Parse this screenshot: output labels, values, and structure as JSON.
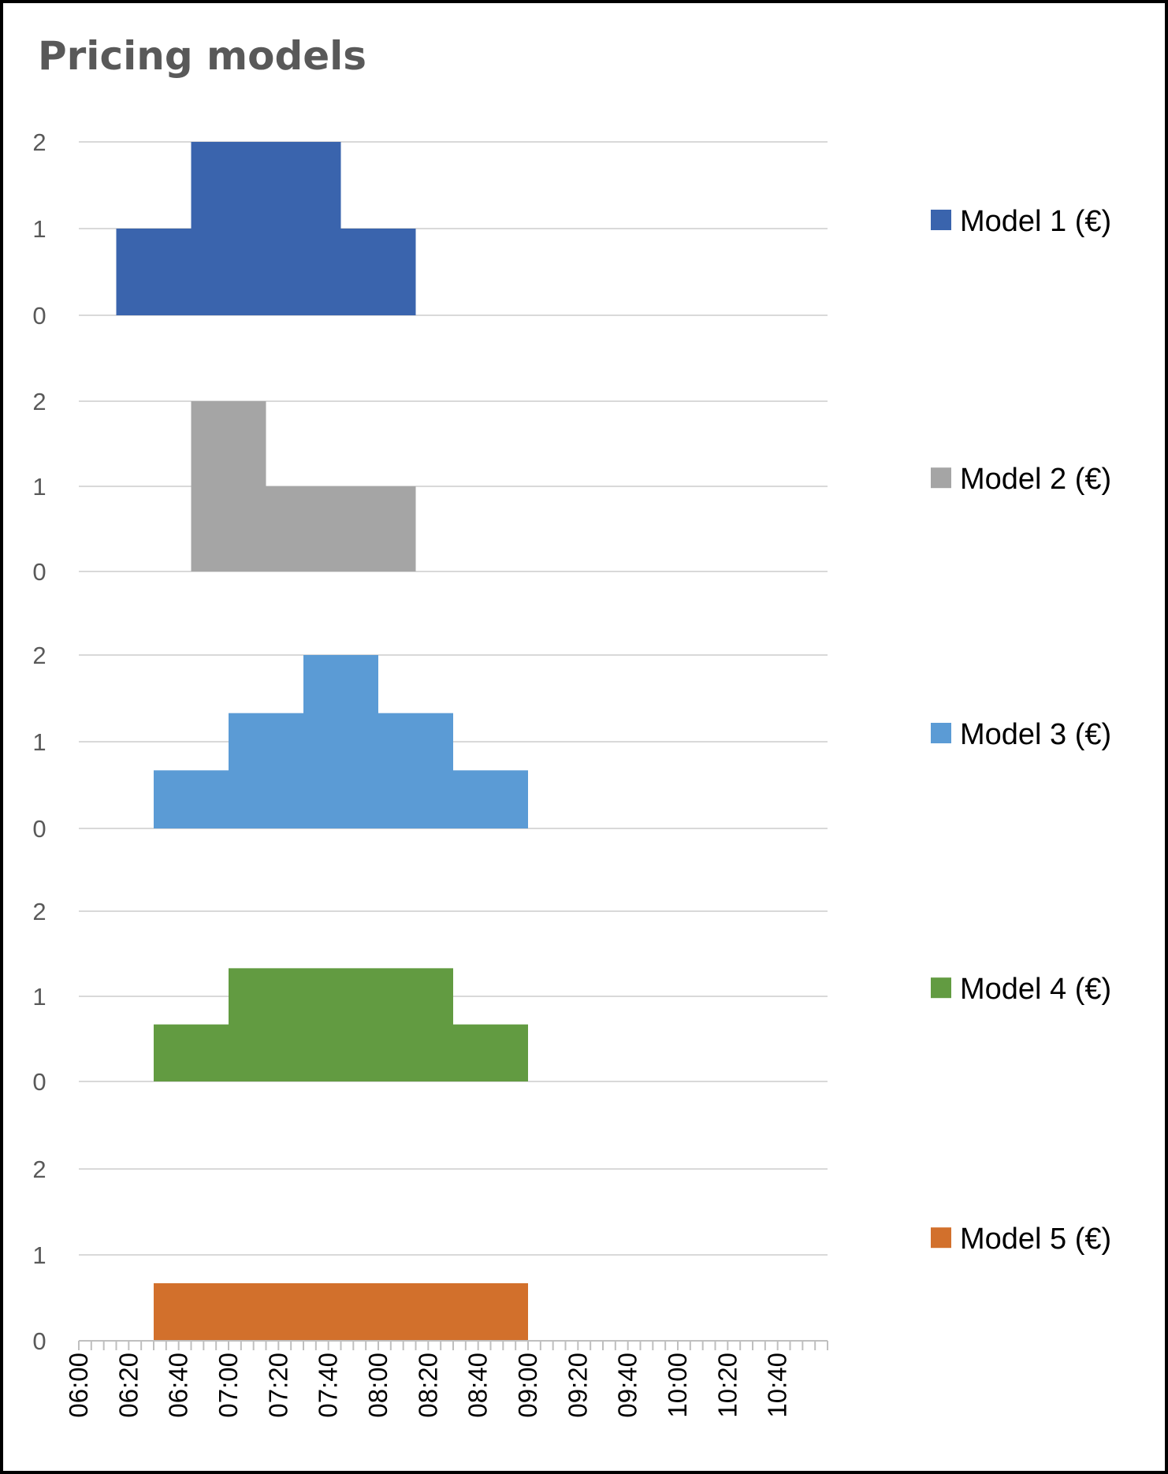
{
  "chart_data": {
    "type": "area",
    "title": "Pricing models",
    "xlabel": "",
    "ylabel": "",
    "x_unit": "time",
    "x_range": [
      "06:00",
      "11:00"
    ],
    "xticks": [
      "06:00",
      "06:20",
      "06:40",
      "07:00",
      "07:20",
      "07:40",
      "08:00",
      "08:20",
      "08:40",
      "09:00",
      "09:20",
      "09:40",
      "10:00",
      "10:20",
      "10:40"
    ],
    "yticks": [
      "0",
      "1",
      "2"
    ],
    "ylim": [
      0,
      2
    ],
    "grid": true,
    "legend_position": "right",
    "layout": "stacked panels, one per series, shared time axis",
    "series": [
      {
        "name": "Model 1 (€)",
        "color": "#3A64AD",
        "steps": [
          {
            "from": "06:15",
            "to": "06:45",
            "value": 1
          },
          {
            "from": "06:45",
            "to": "07:45",
            "value": 2
          },
          {
            "from": "07:45",
            "to": "08:15",
            "value": 1
          }
        ]
      },
      {
        "name": "Model 2 (€)",
        "color": "#A5A5A5",
        "steps": [
          {
            "from": "06:45",
            "to": "07:15",
            "value": 2
          },
          {
            "from": "07:15",
            "to": "08:15",
            "value": 1
          }
        ]
      },
      {
        "name": "Model 3 (€)",
        "color": "#5B9BD5",
        "steps": [
          {
            "from": "06:30",
            "to": "07:00",
            "value": 0.67
          },
          {
            "from": "07:00",
            "to": "07:30",
            "value": 1.33
          },
          {
            "from": "07:30",
            "to": "08:00",
            "value": 2
          },
          {
            "from": "08:00",
            "to": "08:30",
            "value": 1.33
          },
          {
            "from": "08:30",
            "to": "09:00",
            "value": 0.67
          }
        ]
      },
      {
        "name": "Model 4 (€)",
        "color": "#629B41",
        "steps": [
          {
            "from": "06:30",
            "to": "07:00",
            "value": 0.67
          },
          {
            "from": "07:00",
            "to": "08:30",
            "value": 1.33
          },
          {
            "from": "08:30",
            "to": "09:00",
            "value": 0.67
          }
        ]
      },
      {
        "name": "Model 5 (€)",
        "color": "#D2702C",
        "steps": [
          {
            "from": "06:30",
            "to": "09:00",
            "value": 0.67
          }
        ]
      }
    ]
  }
}
